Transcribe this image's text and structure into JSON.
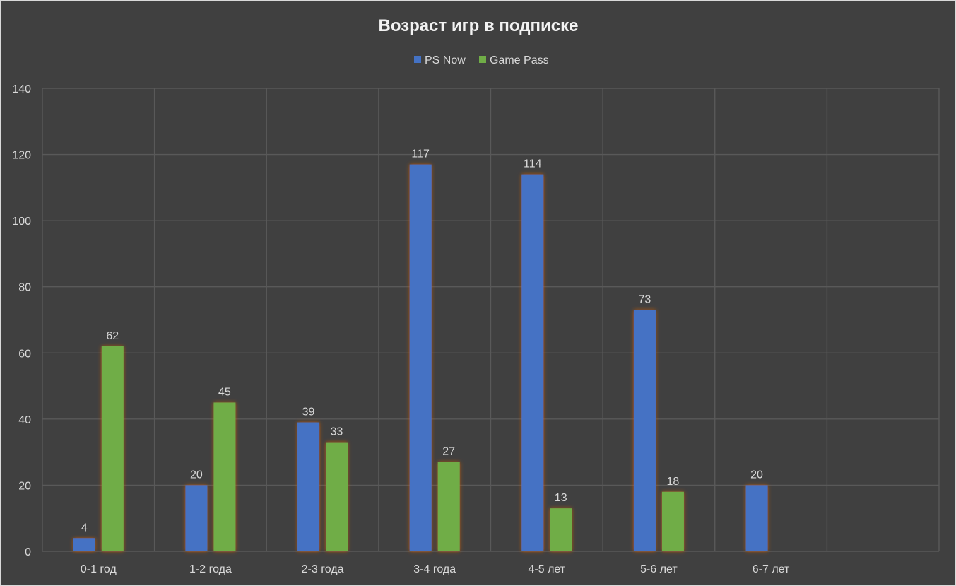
{
  "chart_data": {
    "type": "bar",
    "title": "Возраст игр в подписке",
    "categories": [
      "0-1 год",
      "1-2 года",
      "2-3 года",
      "3-4 года",
      "4-5 лет",
      "5-6 лет",
      "6-7 лет",
      ""
    ],
    "series": [
      {
        "name": "PS Now",
        "color": "#4472c4",
        "values": [
          4,
          20,
          39,
          117,
          114,
          73,
          20,
          null
        ]
      },
      {
        "name": "Game Pass",
        "color": "#70ad47",
        "values": [
          62,
          45,
          33,
          27,
          13,
          18,
          null,
          null
        ]
      }
    ],
    "ylim": [
      0,
      140
    ],
    "yticks": [
      0,
      20,
      40,
      60,
      80,
      100,
      120,
      140
    ],
    "grid": true,
    "legend": "top",
    "colors": {
      "background": "#404040",
      "grid": "#595959",
      "text": "#d9d9d9",
      "glow": "#c55a11"
    }
  }
}
